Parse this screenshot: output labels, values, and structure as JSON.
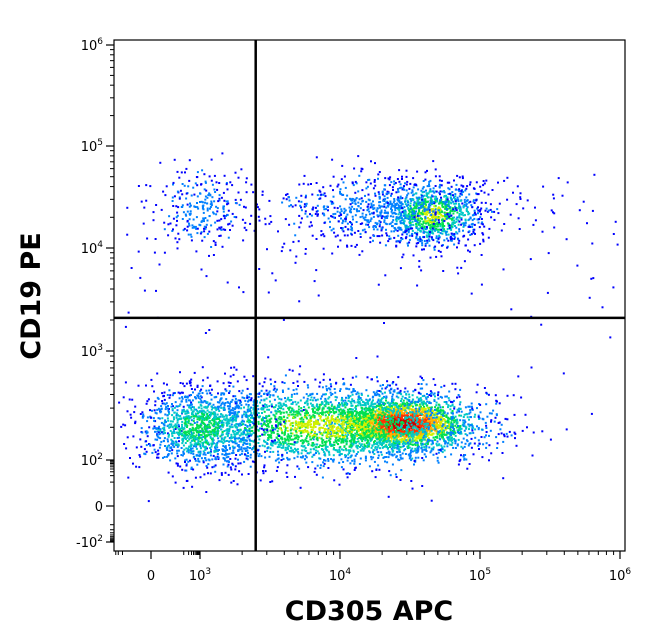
{
  "chart_data": {
    "type": "scatter",
    "style": "flow-cytometry-density-dotplot",
    "xlabel": "CD305 APC",
    "ylabel": "CD19 PE",
    "x_scale": "biexponential",
    "y_scale": "biexponential",
    "xlim": [
      -400,
      1200000
    ],
    "ylim": [
      -150,
      1300000
    ],
    "x_ticks": [
      {
        "base": "0",
        "exp": "",
        "value": 0
      },
      {
        "base": "10",
        "exp": "3",
        "value": 1000
      },
      {
        "base": "10",
        "exp": "4",
        "value": 10000
      },
      {
        "base": "10",
        "exp": "5",
        "value": 100000
      },
      {
        "base": "10",
        "exp": "6",
        "value": 1000000
      }
    ],
    "y_ticks": [
      {
        "base": "-10",
        "exp": "2",
        "value": -100
      },
      {
        "base": "0",
        "exp": "",
        "value": 0
      },
      {
        "base": "10",
        "exp": "2",
        "value": 100
      },
      {
        "base": "10",
        "exp": "3",
        "value": 1000
      },
      {
        "base": "10",
        "exp": "4",
        "value": 10000
      },
      {
        "base": "10",
        "exp": "5",
        "value": 100000
      },
      {
        "base": "10",
        "exp": "6",
        "value": 1000000
      }
    ],
    "quadrant_gate": {
      "x": 2500,
      "y": 2100
    },
    "populations": [
      {
        "x_center": 28000,
        "y_center": 220,
        "density": "highest",
        "color": "#d7191c"
      },
      {
        "x_center": 1000,
        "y_center": 200,
        "density": "medium",
        "color": "#2db4e0"
      },
      {
        "x_center": 45000,
        "y_center": 22000,
        "density": "medium",
        "color": "#3fbf5a"
      },
      {
        "x_center": 1000,
        "y_center": 25000,
        "density": "low",
        "color": "#0000ff"
      }
    ],
    "density_palette": [
      "#0000ff",
      "#0080ff",
      "#00c8c8",
      "#00e050",
      "#d0f000",
      "#ffb000",
      "#ff3000",
      "#c80000"
    ]
  }
}
